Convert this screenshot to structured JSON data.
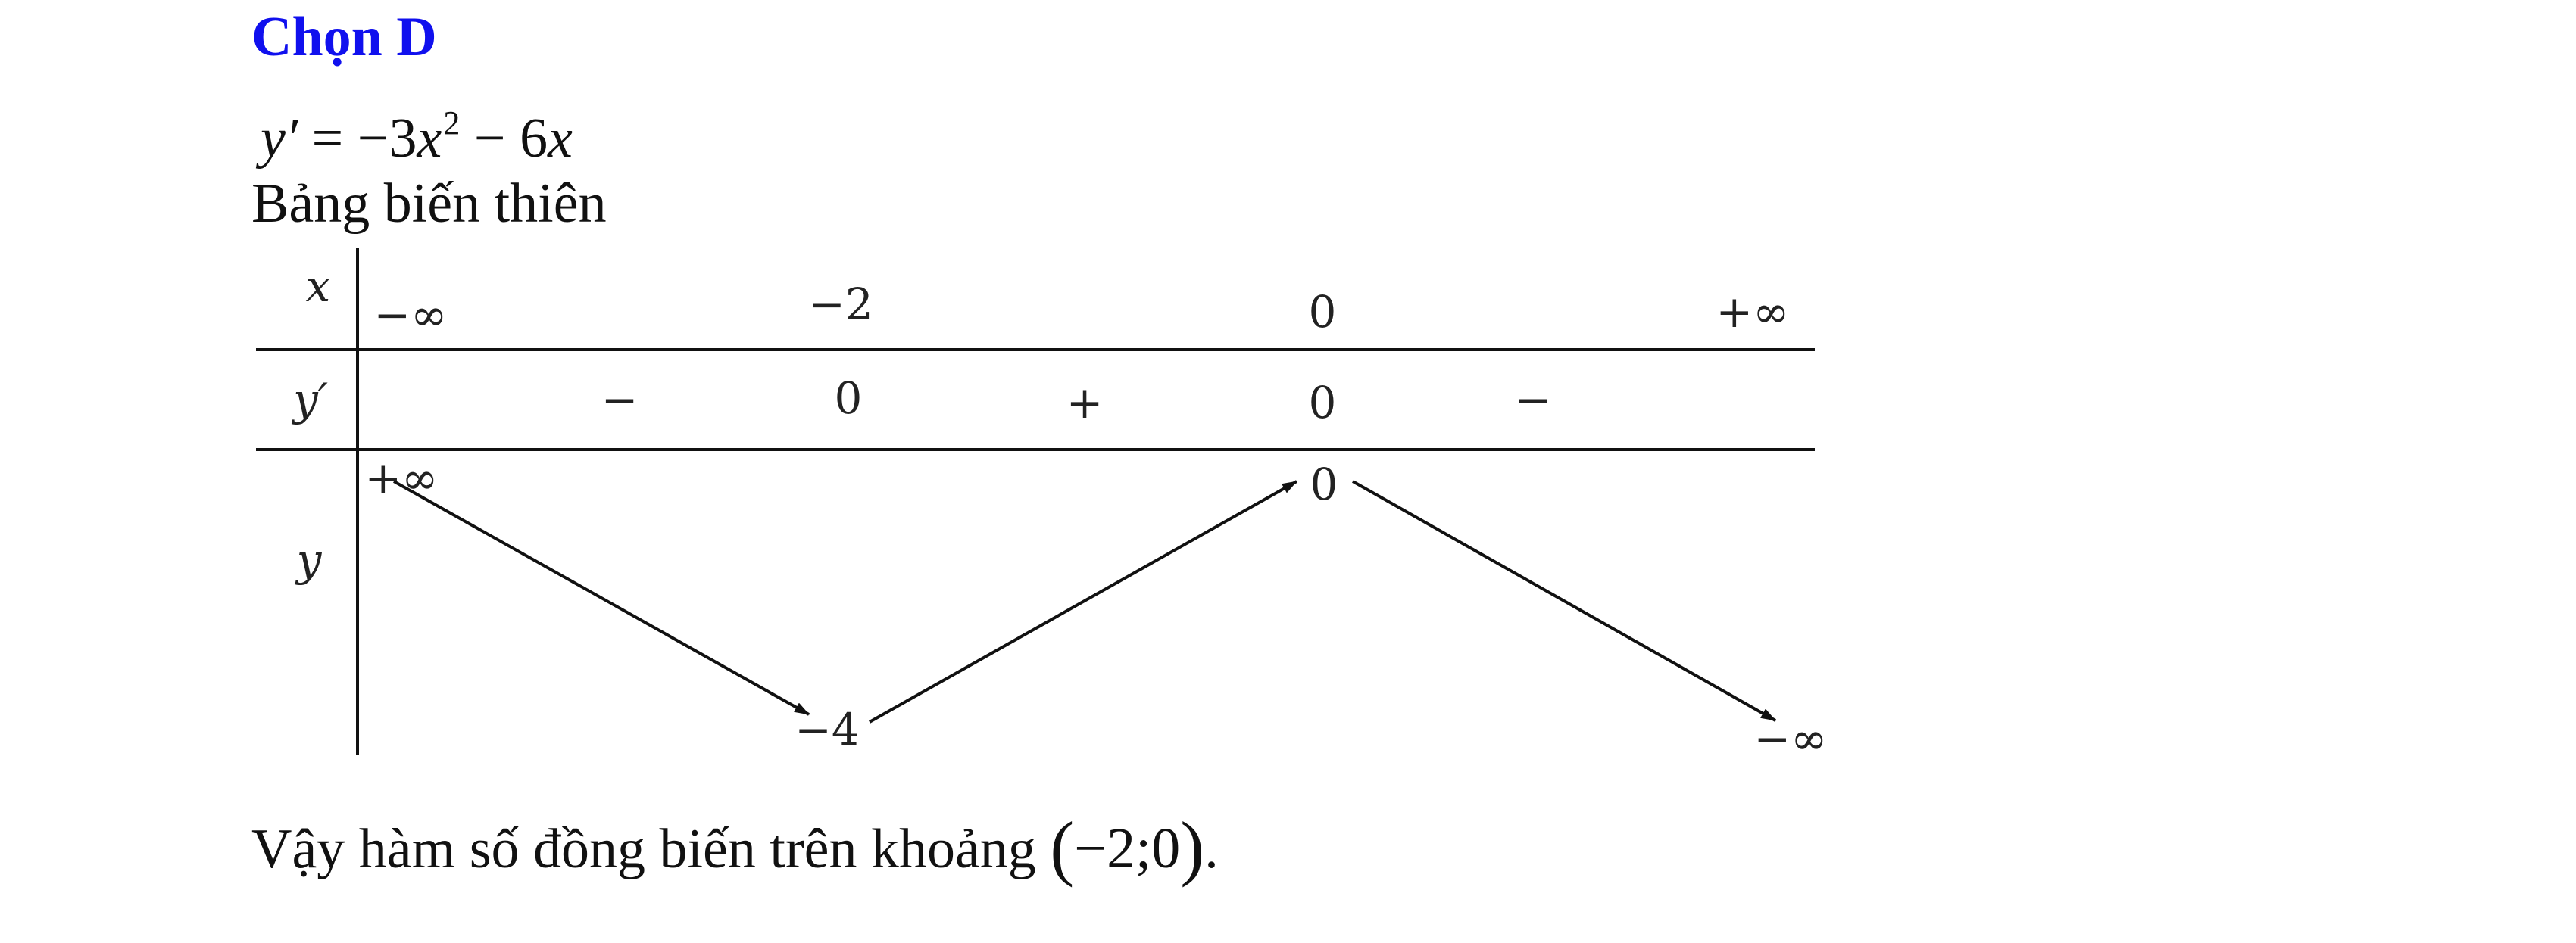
{
  "answer": {
    "heading": "Chọn D"
  },
  "derivative": {
    "lhs": "y′",
    "equals": " = ",
    "term1_sign": "−3",
    "term1_var": "x",
    "term1_exp": "2",
    "term2": " − 6",
    "term2_var": "x"
  },
  "table": {
    "caption": "Bảng biến thiên",
    "row_labels": {
      "x": "x",
      "y_prime": "y′",
      "y": "y"
    },
    "x_values": [
      "−∞",
      "−2",
      "0",
      "+∞"
    ],
    "y_prime_signs": [
      "−",
      "0",
      "+",
      "0",
      "−"
    ],
    "y_values": {
      "start": "+∞",
      "min": "−4",
      "max": "0",
      "end": "−∞"
    }
  },
  "conclusion": {
    "text": "Vậy hàm số đồng biến trên khoảng ",
    "paren_open": "(",
    "interval": "−2;0",
    "paren_close": ")",
    "period": "."
  }
}
